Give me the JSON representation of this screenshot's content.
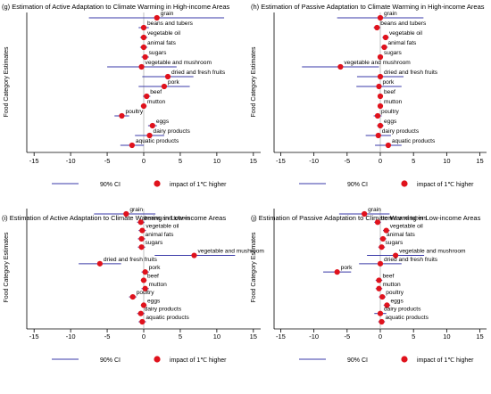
{
  "figure": {
    "y_axis_label": "Food Category Estimates",
    "legend": {
      "ci_label": "90% CI",
      "point_label": "impact of 1℃ higher"
    },
    "colors": {
      "ci": "#3a3aa8",
      "point": "#e0121c",
      "axis": "#000000",
      "vline": "#9a9a9a"
    }
  },
  "chart_data": [
    {
      "type": "scatter",
      "subtype": "coefficient-plot",
      "title": "(g) Estimation of Active Adaptation to Climate Warming in High-income Areas",
      "ylabel": "Food Category Estimates",
      "xlim": [
        -16,
        16
      ],
      "xticks": [
        -15,
        -10,
        -5,
        0,
        5,
        10,
        15
      ],
      "points": [
        {
          "label": "grain",
          "est": 1.8,
          "lo": -7.5,
          "hi": 11.0
        },
        {
          "label": "beans and tubers",
          "est": 0.0,
          "lo": -0.7,
          "hi": 0.7
        },
        {
          "label": "vegetable oil",
          "est": 0.0,
          "lo": -0.5,
          "hi": 0.5
        },
        {
          "label": "animal fats",
          "est": 0.0,
          "lo": -0.5,
          "hi": 0.5
        },
        {
          "label": "sugars",
          "est": 0.2,
          "lo": -0.3,
          "hi": 0.7
        },
        {
          "label": "vegetable and mushroom",
          "est": -0.3,
          "lo": -5.0,
          "hi": 4.5
        },
        {
          "label": "dried and fresh fruits",
          "est": 3.3,
          "lo": -0.2,
          "hi": 6.8
        },
        {
          "label": "pork",
          "est": 2.8,
          "lo": -0.7,
          "hi": 6.3
        },
        {
          "label": "beef",
          "est": 0.4,
          "lo": -0.1,
          "hi": 0.9
        },
        {
          "label": "mutton",
          "est": 0.0,
          "lo": -0.4,
          "hi": 0.4
        },
        {
          "label": "poultry",
          "est": -3.0,
          "lo": -4.0,
          "hi": -2.0
        },
        {
          "label": "eggs",
          "est": 1.2,
          "lo": 0.6,
          "hi": 1.8
        },
        {
          "label": "dairy products",
          "est": 0.8,
          "lo": -1.2,
          "hi": 2.8
        },
        {
          "label": "aquatic products",
          "est": -1.6,
          "lo": -3.2,
          "hi": 0.0
        }
      ]
    },
    {
      "type": "scatter",
      "subtype": "coefficient-plot",
      "title": "(h) Estimation of Passive Adaptation to Climate Warming in High-income Areas",
      "ylabel": "Food Category Estimates",
      "xlim": [
        -16,
        16
      ],
      "xticks": [
        -15,
        -10,
        -5,
        0,
        5,
        10,
        15
      ],
      "points": [
        {
          "label": "grain",
          "est": 0.0,
          "lo": -6.5,
          "hi": 6.5
        },
        {
          "label": "beans and tubers",
          "est": -0.5,
          "lo": -1.0,
          "hi": 0.0
        },
        {
          "label": "vegetable oil",
          "est": 0.8,
          "lo": 0.3,
          "hi": 1.3
        },
        {
          "label": "animal fats",
          "est": 0.6,
          "lo": 0.1,
          "hi": 1.1
        },
        {
          "label": "sugars",
          "est": 0.0,
          "lo": -0.4,
          "hi": 0.4
        },
        {
          "label": "vegetable and mushroom",
          "est": -6.0,
          "lo": -11.8,
          "hi": -0.2
        },
        {
          "label": "dried and fresh fruits",
          "est": 0.0,
          "lo": -3.5,
          "hi": 3.5
        },
        {
          "label": "pork",
          "est": -0.2,
          "lo": -3.6,
          "hi": 3.2
        },
        {
          "label": "beef",
          "est": 0.0,
          "lo": -0.4,
          "hi": 0.4
        },
        {
          "label": "mutton",
          "est": 0.0,
          "lo": -0.4,
          "hi": 0.4
        },
        {
          "label": "poultry",
          "est": -0.4,
          "lo": -1.0,
          "hi": 0.2
        },
        {
          "label": "eggs",
          "est": 0.0,
          "lo": -0.5,
          "hi": 0.5
        },
        {
          "label": "dairy products",
          "est": -0.3,
          "lo": -2.2,
          "hi": 1.6
        },
        {
          "label": "aquatic products",
          "est": 1.2,
          "lo": -0.8,
          "hi": 3.2
        }
      ]
    },
    {
      "type": "scatter",
      "subtype": "coefficient-plot",
      "title": "(i) Estimation of Active Adaptation to Climate Warming in Low-income Areas",
      "ylabel": "Food Category Estimates",
      "xlim": [
        -16,
        16
      ],
      "xticks": [
        -15,
        -10,
        -5,
        0,
        5,
        10,
        15
      ],
      "points": [
        {
          "label": "grain",
          "est": -2.4,
          "lo": -6.8,
          "hi": 1.6
        },
        {
          "label": "beans and tubers",
          "est": -0.4,
          "lo": -0.9,
          "hi": 0.1
        },
        {
          "label": "vegetable oil",
          "est": -0.2,
          "lo": -0.7,
          "hi": 0.3
        },
        {
          "label": "animal fats",
          "est": -0.3,
          "lo": -0.8,
          "hi": 0.2
        },
        {
          "label": "sugars",
          "est": -0.3,
          "lo": -0.8,
          "hi": 0.2
        },
        {
          "label": "vegetable and mushroom",
          "est": 6.9,
          "lo": 1.5,
          "hi": 12.5
        },
        {
          "label": "dried and fresh fruits",
          "est": -6.0,
          "lo": -8.9,
          "hi": -3.1
        },
        {
          "label": "pork",
          "est": 0.2,
          "lo": -0.3,
          "hi": 0.7
        },
        {
          "label": "beef",
          "est": 0.0,
          "lo": -0.4,
          "hi": 0.4
        },
        {
          "label": "mutton",
          "est": 0.2,
          "lo": -0.3,
          "hi": 0.7
        },
        {
          "label": "poultry",
          "est": -1.5,
          "lo": -2.0,
          "hi": -1.0
        },
        {
          "label": "eggs",
          "est": 0.0,
          "lo": -0.4,
          "hi": 0.4
        },
        {
          "label": "dairy products",
          "est": -0.4,
          "lo": -0.9,
          "hi": 0.1
        },
        {
          "label": "aquatic products",
          "est": -0.2,
          "lo": -0.7,
          "hi": 0.3
        }
      ]
    },
    {
      "type": "scatter",
      "subtype": "coefficient-plot",
      "title": "(j) Estimation of Passive Adaptation to Climate Warming in Low-income Areas",
      "ylabel": "Food Category Estimates",
      "xlim": [
        -16,
        16
      ],
      "xticks": [
        -15,
        -10,
        -5,
        0,
        5,
        10,
        15
      ],
      "points": [
        {
          "label": "grain",
          "est": -2.4,
          "lo": -6.2,
          "hi": 1.4
        },
        {
          "label": "beans and tubers",
          "est": -0.4,
          "lo": -0.9,
          "hi": 0.1
        },
        {
          "label": "vegetable oil",
          "est": 0.9,
          "lo": 0.4,
          "hi": 1.4
        },
        {
          "label": "animal fats",
          "est": 0.4,
          "lo": -0.1,
          "hi": 0.9
        },
        {
          "label": "sugars",
          "est": 0.2,
          "lo": -0.3,
          "hi": 0.7
        },
        {
          "label": "vegetable and mushroom",
          "est": 2.3,
          "lo": -2.0,
          "hi": 6.6
        },
        {
          "label": "dried and fresh fruits",
          "est": 0.0,
          "lo": -3.2,
          "hi": 3.2
        },
        {
          "label": "pork",
          "est": -6.5,
          "lo": -8.6,
          "hi": -4.4
        },
        {
          "label": "beef",
          "est": -0.2,
          "lo": -0.7,
          "hi": 0.3
        },
        {
          "label": "mutton",
          "est": -0.2,
          "lo": -0.7,
          "hi": 0.3
        },
        {
          "label": "poultry",
          "est": 0.3,
          "lo": -0.2,
          "hi": 0.8
        },
        {
          "label": "eggs",
          "est": 1.0,
          "lo": 0.5,
          "hi": 1.5
        },
        {
          "label": "dairy products",
          "est": 0.0,
          "lo": -0.9,
          "hi": 0.9
        },
        {
          "label": "aquatic products",
          "est": 0.2,
          "lo": -0.3,
          "hi": 0.7
        }
      ]
    }
  ]
}
